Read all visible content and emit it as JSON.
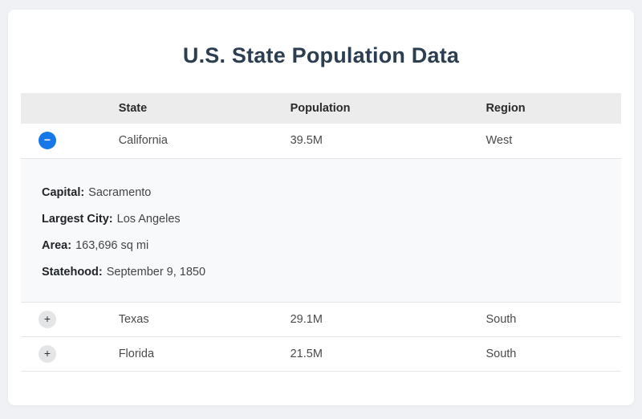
{
  "page": {
    "title": "U.S. State Population Data"
  },
  "colors": {
    "page_bg": "#eff1f4",
    "card_bg": "#ffffff",
    "title_color": "#2c3e50",
    "header_row_bg": "#ececec",
    "row_border": "#e3e5e8",
    "detail_panel_bg": "#f8f9fa",
    "toggle_expanded_bg": "#1777e8",
    "toggle_collapsed_bg": "#e4e5e7"
  },
  "table": {
    "headers": {
      "state": "State",
      "population": "Population",
      "region": "Region"
    },
    "rows": [
      {
        "state": "California",
        "population": "39.5M",
        "region": "West",
        "expanded": true,
        "toggle_label": "−",
        "details": [
          {
            "label": "Capital:",
            "value": "Sacramento"
          },
          {
            "label": "Largest City:",
            "value": "Los Angeles"
          },
          {
            "label": "Area:",
            "value": "163,696 sq mi"
          },
          {
            "label": "Statehood:",
            "value": "September 9, 1850"
          }
        ]
      },
      {
        "state": "Texas",
        "population": "29.1M",
        "region": "South",
        "expanded": false,
        "toggle_label": "+"
      },
      {
        "state": "Florida",
        "population": "21.5M",
        "region": "South",
        "expanded": false,
        "toggle_label": "+"
      }
    ]
  }
}
